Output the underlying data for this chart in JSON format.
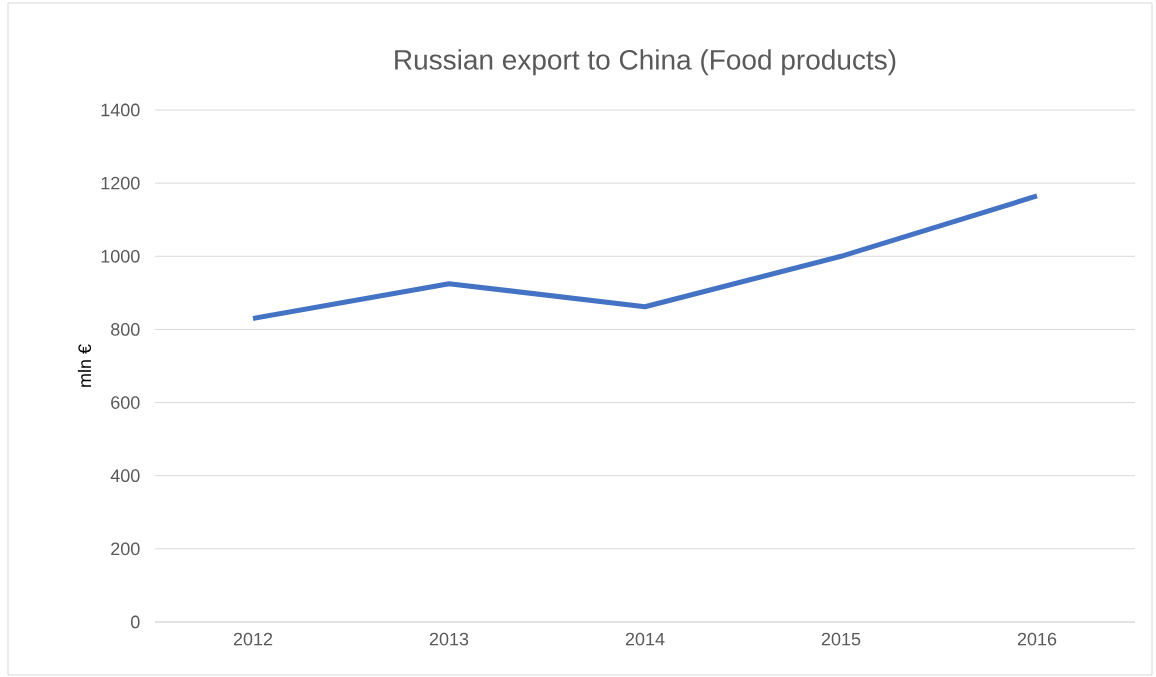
{
  "chart_data": {
    "type": "line",
    "title": "Russian export to China (Food products)",
    "ylabel": "mln €",
    "categories": [
      "2012",
      "2013",
      "2014",
      "2015",
      "2016"
    ],
    "series": [
      {
        "color": "#4472c4",
        "values": [
          830,
          925,
          862,
          1000,
          1165
        ]
      }
    ],
    "ylim": [
      0,
      1400
    ],
    "yticks": [
      0,
      200,
      400,
      600,
      800,
      1000,
      1200,
      1400
    ],
    "grid": "y",
    "marker": "none",
    "line_style": "solid"
  }
}
